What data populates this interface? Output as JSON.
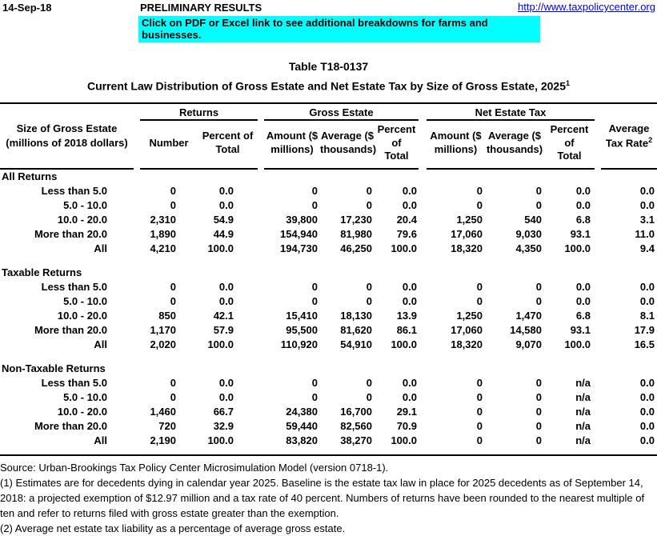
{
  "topbar": {
    "date": "14-Sep-18",
    "preliminary": "PRELIMINARY RESULTS",
    "link": "http://www.taxpolicycenter.org"
  },
  "banner": {
    "text": "Click on PDF or Excel link to see additional breakdowns for farms and businesses."
  },
  "title": {
    "table_number": "Table T18-0137",
    "main": "Current Law Distribution of Gross Estate and Net Estate Tax by Size of Gross Estate, 2025",
    "superscript": "1"
  },
  "table": {
    "size_header": {
      "line1": "Size of Gross Estate",
      "line2": "(millions of 2018 dollars)"
    },
    "groups": [
      {
        "label": "Returns"
      },
      {
        "label": "Gross Estate"
      },
      {
        "label": "Net Estate Tax"
      }
    ],
    "subheaders": [
      "Number",
      "Percent of\nTotal",
      "Amount ($\nmillions)",
      "Average ($\nthousands)",
      "Percent of\nTotal",
      "Amount ($\nmillions)",
      "Average ($\nthousands)",
      "Percent of\nTotal"
    ],
    "rate_header": {
      "line1": "Average",
      "line2": "Tax Rate",
      "superscript": "2"
    },
    "sections": [
      {
        "title": "All Returns",
        "rows": [
          {
            "label": "Less than 5.0",
            "values": [
              "0",
              "0.0",
              "0",
              "0",
              "0.0",
              "0",
              "0",
              "0.0",
              "0.0"
            ]
          },
          {
            "label": "5.0 - 10.0",
            "values": [
              "0",
              "0.0",
              "0",
              "0",
              "0.0",
              "0",
              "0",
              "0.0",
              "0.0"
            ]
          },
          {
            "label": "10.0 - 20.0",
            "values": [
              "2,310",
              "54.9",
              "39,800",
              "17,230",
              "20.4",
              "1,250",
              "540",
              "6.8",
              "3.1"
            ]
          },
          {
            "label": "More than 20.0",
            "values": [
              "1,890",
              "44.9",
              "154,940",
              "81,980",
              "79.6",
              "17,060",
              "9,030",
              "93.1",
              "11.0"
            ]
          },
          {
            "label": "All",
            "values": [
              "4,210",
              "100.0",
              "194,730",
              "46,250",
              "100.0",
              "18,320",
              "4,350",
              "100.0",
              "9.4"
            ]
          }
        ]
      },
      {
        "title": "Taxable Returns",
        "rows": [
          {
            "label": "Less than 5.0",
            "values": [
              "0",
              "0.0",
              "0",
              "0",
              "0.0",
              "0",
              "0",
              "0.0",
              "0.0"
            ]
          },
          {
            "label": "5.0 - 10.0",
            "values": [
              "0",
              "0.0",
              "0",
              "0",
              "0.0",
              "0",
              "0",
              "0.0",
              "0.0"
            ]
          },
          {
            "label": "10.0 - 20.0",
            "values": [
              "850",
              "42.1",
              "15,410",
              "18,130",
              "13.9",
              "1,250",
              "1,470",
              "6.8",
              "8.1"
            ]
          },
          {
            "label": "More than 20.0",
            "values": [
              "1,170",
              "57.9",
              "95,500",
              "81,620",
              "86.1",
              "17,060",
              "14,580",
              "93.1",
              "17.9"
            ]
          },
          {
            "label": "All",
            "values": [
              "2,020",
              "100.0",
              "110,920",
              "54,910",
              "100.0",
              "18,320",
              "9,070",
              "100.0",
              "16.5"
            ]
          }
        ]
      },
      {
        "title": "Non-Taxable Returns",
        "rows": [
          {
            "label": "Less than 5.0",
            "values": [
              "0",
              "0.0",
              "0",
              "0",
              "0.0",
              "0",
              "0",
              "n/a",
              "0.0"
            ]
          },
          {
            "label": "5.0 - 10.0",
            "values": [
              "0",
              "0.0",
              "0",
              "0",
              "0.0",
              "0",
              "0",
              "n/a",
              "0.0"
            ]
          },
          {
            "label": "10.0 - 20.0",
            "values": [
              "1,460",
              "66.7",
              "24,380",
              "16,700",
              "29.1",
              "0",
              "0",
              "n/a",
              "0.0"
            ]
          },
          {
            "label": "More than 20.0",
            "values": [
              "720",
              "32.9",
              "59,440",
              "82,560",
              "70.9",
              "0",
              "0",
              "n/a",
              "0.0"
            ]
          },
          {
            "label": "All",
            "values": [
              "2,190",
              "100.0",
              "83,820",
              "38,270",
              "100.0",
              "0",
              "0",
              "n/a",
              "0.0"
            ]
          }
        ]
      }
    ]
  },
  "notes": {
    "source": "Source: Urban-Brookings Tax Policy Center Microsimulation Model (version 0718-1).",
    "note1": "(1) Estimates are for decedents dying in calendar year 2025. Baseline is the estate tax law in place for 2025 decedents as of September 14, 2018: a projected exemption of $12.97 million and a tax rate of 40 percent. Numbers of returns have been rounded to the nearest multiple of ten and refer to returns filed with gross estate greater than the exemption.",
    "note2": "(2) Average net estate tax liability as a percentage of average gross estate."
  },
  "colors": {
    "banner_background": "#00FFFF",
    "link": "#0000FF",
    "text": "#000000"
  }
}
